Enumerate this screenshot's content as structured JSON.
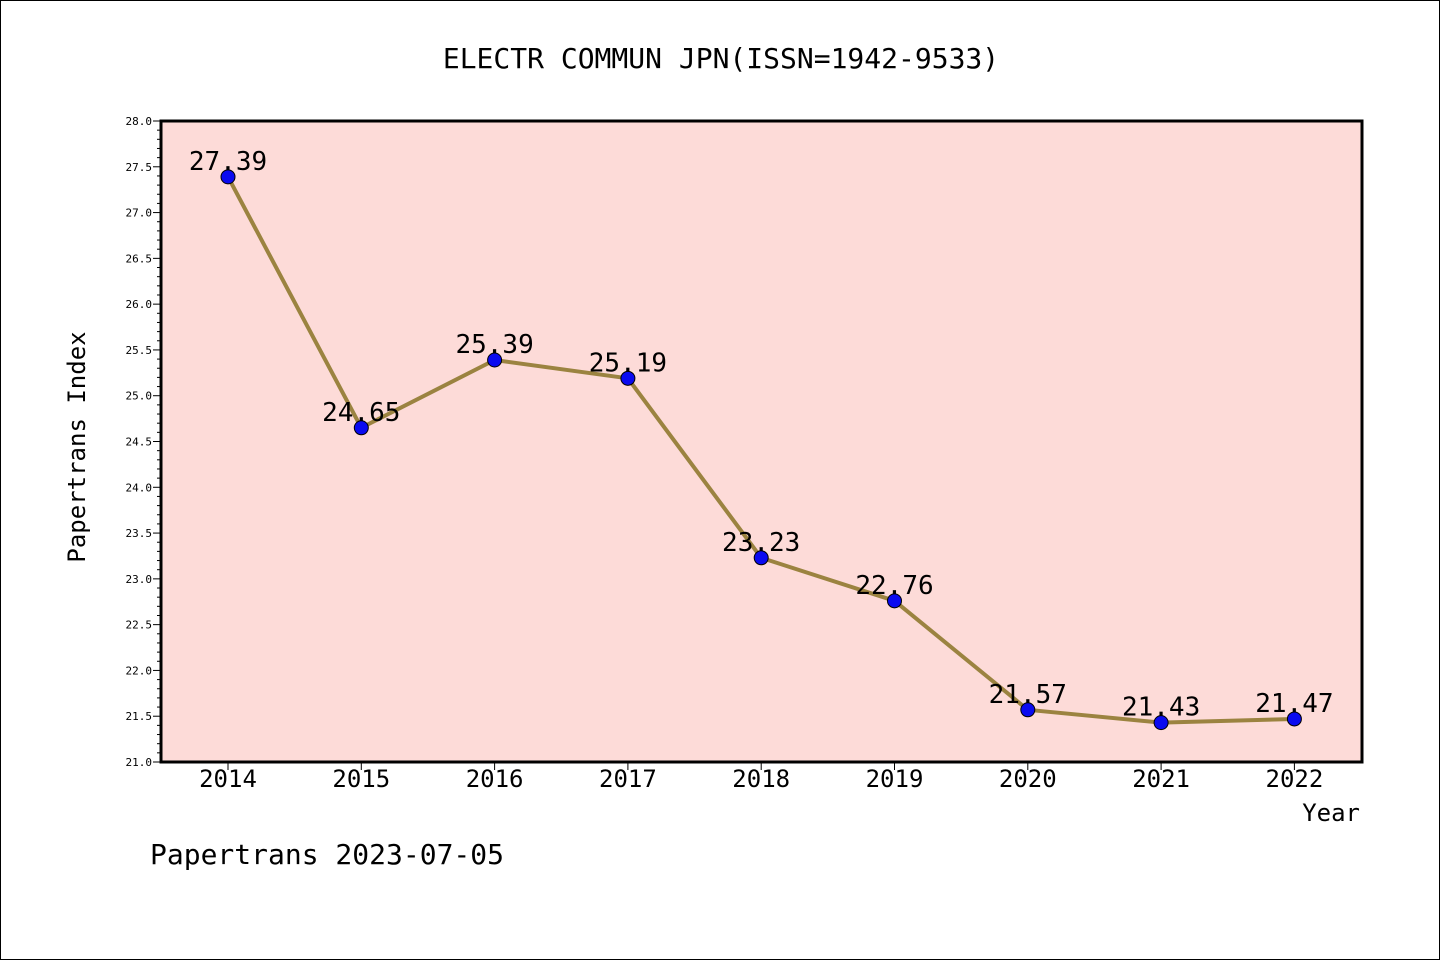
{
  "chart_data": {
    "type": "line",
    "title": "ELECTR COMMUN JPN(ISSN=1942-9533)",
    "xlabel": "Year",
    "ylabel": "Papertrans Index",
    "categories": [
      "2014",
      "2015",
      "2016",
      "2017",
      "2018",
      "2019",
      "2020",
      "2021",
      "2022"
    ],
    "values": [
      27.39,
      24.65,
      25.39,
      25.19,
      23.23,
      22.76,
      21.57,
      21.43,
      21.47
    ],
    "value_labels": [
      "27.39",
      "24.65",
      "25.39",
      "25.19",
      "23.23",
      "22.76",
      "21.57",
      "21.43",
      "21.47"
    ],
    "ylim": [
      21.0,
      28.0
    ],
    "yticks": [
      "21.0",
      "21.5",
      "22.0",
      "22.5",
      "23.0",
      "23.5",
      "24.0",
      "24.5",
      "25.0",
      "25.5",
      "26.0",
      "26.5",
      "27.0",
      "27.5",
      "28.0"
    ],
    "grid": false,
    "plot_background": "#fddbd8",
    "line_color": "#9b8340",
    "marker_color": "#0a0af0"
  },
  "footer": "Papertrans 2023-07-05"
}
